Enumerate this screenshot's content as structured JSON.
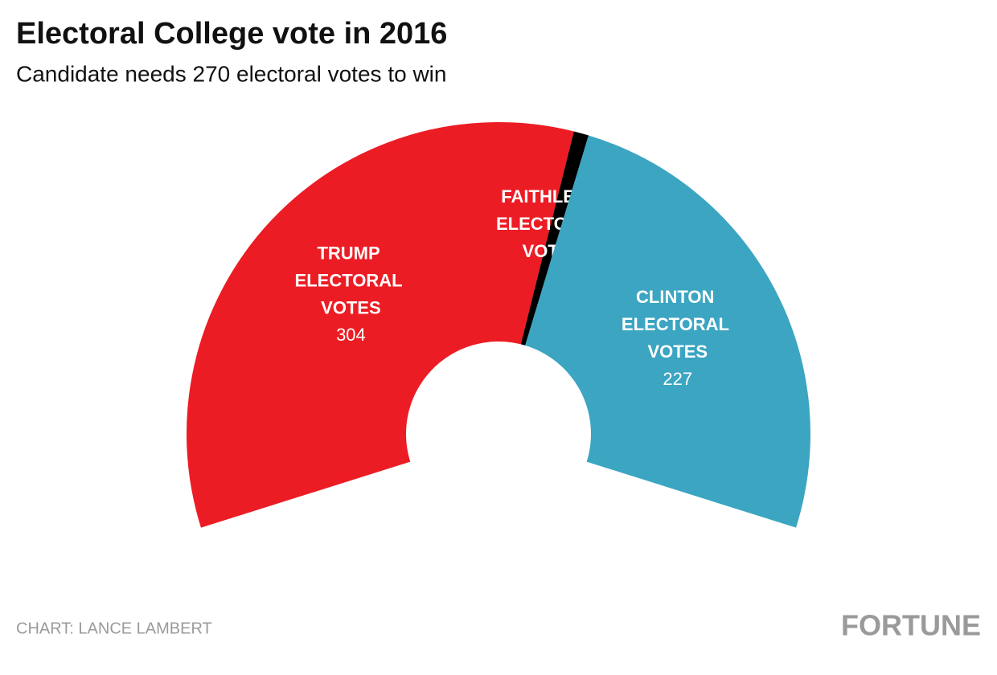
{
  "chart_data": {
    "type": "donut",
    "title": "Electoral College vote in 2016",
    "subtitle": "Candidate needs 270 electoral votes to win",
    "categories": [
      "TRUMP ELECTORAL VOTES",
      "FAITHLESS ELECTORAL VOTES",
      "CLINTON ELECTORAL VOTES"
    ],
    "values": [
      304,
      7,
      227
    ],
    "colors": [
      "#ec1c24",
      "#000000",
      "#3ba5c2"
    ],
    "source": "CHART: LANCE LAMBERT",
    "logo": "FORTUNE"
  }
}
